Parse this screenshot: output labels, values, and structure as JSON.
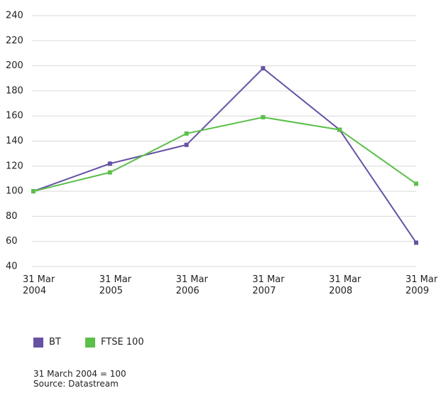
{
  "chart_data": {
    "type": "line",
    "categories": [
      "31 Mar 2004",
      "31 Mar 2005",
      "31 Mar 2006",
      "31 Mar 2007",
      "31 Mar 2008",
      "31 Mar 2009"
    ],
    "series": [
      {
        "name": "BT",
        "color": "#6652a3",
        "values": [
          100,
          122,
          137,
          198,
          149,
          59
        ]
      },
      {
        "name": "FTSE 100",
        "color": "#5cbf4a",
        "values": [
          100,
          115,
          146,
          159,
          149,
          106
        ]
      }
    ],
    "ylim": [
      40,
      240
    ],
    "yticks": [
      40,
      60,
      80,
      100,
      120,
      140,
      160,
      180,
      200,
      220,
      240
    ],
    "grid": true,
    "notes": [
      "31 March 2004 = 100",
      "Source: Datastream"
    ]
  }
}
